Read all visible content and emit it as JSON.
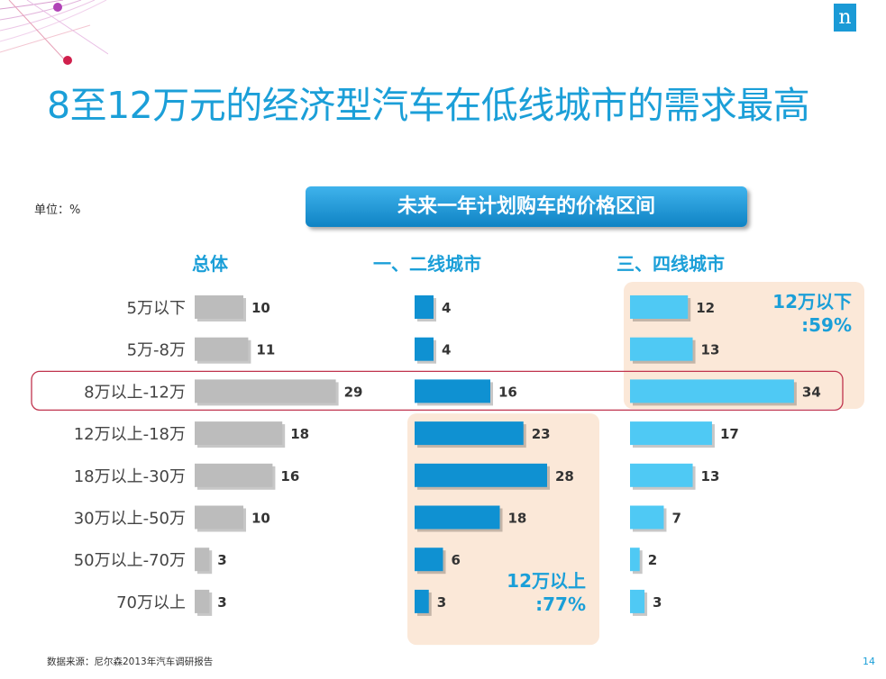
{
  "title": "8至12万元的经济型汽车在低线城市的需求最高",
  "unit_label": "单位：%",
  "banner_title": "未来一年计划购车的价格区间",
  "logo_text": "n",
  "annotations": {
    "tier34_low": [
      "12万以下",
      ":59%"
    ],
    "tier12_high": [
      "12万以上",
      ":77%"
    ]
  },
  "colors": {
    "accent": "#1b9fd8",
    "overall_bar": "#bcbcbc",
    "tier12_bar": "#0f91d2",
    "tier34_bar": "#4fc9f4",
    "highlight_fill": "#fbe8d8",
    "row_outline": "#c0334d"
  },
  "chart_data": {
    "type": "bar",
    "orientation": "horizontal",
    "categories": [
      "5万以下",
      "5万-8万",
      "8万以上-12万",
      "12万以上-18万",
      "18万以上-30万",
      "30万以上-50万",
      "50万以上-70万",
      "70万以上"
    ],
    "series": [
      {
        "name": "总体",
        "values": [
          10,
          11,
          29,
          18,
          16,
          10,
          3,
          3
        ]
      },
      {
        "name": "一、二线城市",
        "values": [
          4,
          4,
          16,
          23,
          28,
          18,
          6,
          3
        ]
      },
      {
        "name": "三、四线城市",
        "values": [
          12,
          13,
          34,
          17,
          13,
          7,
          2,
          3
        ]
      }
    ],
    "highlighted_category": "8万以上-12万"
  },
  "footer": {
    "source": "数据来源：尼尔森2013年汽车调研报告",
    "page": "14"
  }
}
